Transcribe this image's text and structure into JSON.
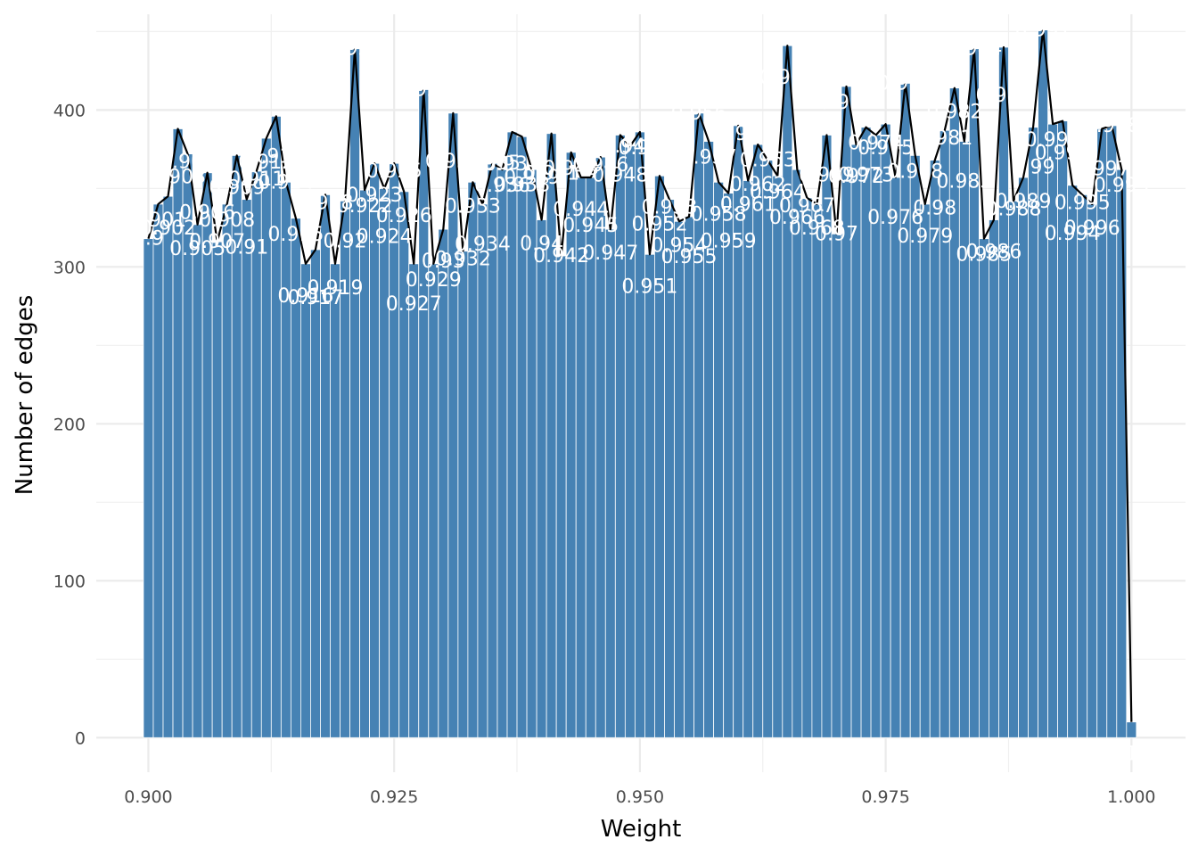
{
  "chart_data": {
    "type": "bar",
    "title": "",
    "xlabel": "Weight",
    "ylabel": "Number of edges",
    "xlim": [
      0.8947,
      1.0055
    ],
    "ylim": [
      -22,
      461
    ],
    "grid": true,
    "legend": "none",
    "x_ticks": [
      0.9,
      0.925,
      0.95,
      0.975,
      1.0
    ],
    "x_tick_labels": [
      "0.900",
      "0.925",
      "0.950",
      "0.975",
      "1.000"
    ],
    "y_ticks": [
      0,
      100,
      200,
      300,
      400
    ],
    "y_tick_labels": [
      "0",
      "100",
      "200",
      "300",
      "400"
    ],
    "bar_color": "#4682B4",
    "line_color": "#000000",
    "label_color": "#FFFFFF",
    "x": [
      0.9,
      0.901,
      0.902,
      0.903,
      0.904,
      0.905,
      0.906,
      0.907,
      0.908,
      0.909,
      0.91,
      0.911,
      0.912,
      0.913,
      0.914,
      0.915,
      0.916,
      0.917,
      0.918,
      0.919,
      0.92,
      0.921,
      0.922,
      0.923,
      0.924,
      0.925,
      0.926,
      0.927,
      0.928,
      0.929,
      0.93,
      0.931,
      0.932,
      0.933,
      0.934,
      0.935,
      0.936,
      0.937,
      0.938,
      0.939,
      0.94,
      0.941,
      0.942,
      0.943,
      0.944,
      0.945,
      0.946,
      0.947,
      0.948,
      0.949,
      0.95,
      0.951,
      0.952,
      0.953,
      0.954,
      0.955,
      0.956,
      0.957,
      0.958,
      0.959,
      0.96,
      0.961,
      0.962,
      0.963,
      0.964,
      0.965,
      0.966,
      0.967,
      0.968,
      0.969,
      0.97,
      0.971,
      0.972,
      0.973,
      0.974,
      0.975,
      0.976,
      0.977,
      0.978,
      0.979,
      0.98,
      0.981,
      0.982,
      0.983,
      0.984,
      0.985,
      0.986,
      0.987,
      0.988,
      0.989,
      0.99,
      0.991,
      0.992,
      0.993,
      0.994,
      0.995,
      0.996,
      0.997,
      0.998,
      0.999,
      1.0
    ],
    "values": [
      318,
      340,
      345,
      388,
      372,
      327,
      360,
      316,
      340,
      371,
      343,
      361,
      382,
      396,
      354,
      331,
      302,
      311,
      346,
      302,
      342,
      439,
      349,
      366,
      350,
      366,
      348,
      302,
      413,
      302,
      324,
      398,
      310,
      354,
      340,
      366,
      362,
      386,
      383,
      362,
      330,
      385,
      307,
      373,
      357,
      357,
      370,
      324,
      384,
      377,
      386,
      308,
      358,
      343,
      329,
      332,
      398,
      380,
      354,
      347,
      390,
      355,
      378,
      368,
      358,
      441,
      362,
      344,
      340,
      384,
      321,
      415,
      378,
      389,
      384,
      391,
      357,
      417,
      371,
      340,
      368,
      387,
      414,
      380,
      439,
      318,
      330,
      440,
      342,
      357,
      389,
      451,
      391,
      393,
      352,
      346,
      340,
      388,
      390,
      362,
      10
    ],
    "labels": [
      "0.9",
      "0.901",
      "0.902",
      "0.903",
      "0.904",
      "0.905",
      "0.906",
      "0.907",
      "0.908",
      "0.909",
      "0.91",
      "0.911",
      "0.912",
      "0.913",
      "0.914",
      "0.915",
      "0.916",
      "0.917",
      "0.918",
      "0.919",
      "0.92",
      "0.921",
      "0.922",
      "0.923",
      "0.924",
      "0.925",
      "0.926",
      "0.927",
      "0.928",
      "0.929",
      "0.93",
      "0.931",
      "0.932",
      "0.933",
      "0.934",
      "0.935",
      "0.936",
      "0.937",
      "0.938",
      "0.939",
      "0.94",
      "0.941",
      "0.942",
      "0.943",
      "0.944",
      "0.945",
      "0.946",
      "0.947",
      "0.948",
      "0.949",
      "0.95",
      "0.951",
      "0.952",
      "0.953",
      "0.954",
      "0.955",
      "0.956",
      "0.957",
      "0.958",
      "0.959",
      "0.96",
      "0.961",
      "0.962",
      "0.963",
      "0.964",
      "0.965",
      "0.966",
      "0.967",
      "0.968",
      "0.969",
      "0.97",
      "0.971",
      "0.972",
      "0.973",
      "0.974",
      "0.975",
      "0.976",
      "0.977",
      "0.978",
      "0.979",
      "0.98",
      "0.981",
      "0.982",
      "0.983",
      "0.984",
      "0.985",
      "0.986",
      "0.987",
      "0.988",
      "0.989",
      "0.99",
      "0.991",
      "0.992",
      "0.993",
      "0.994",
      "0.995",
      "0.996",
      "0.997",
      "0.998",
      "0.999",
      "1"
    ]
  }
}
